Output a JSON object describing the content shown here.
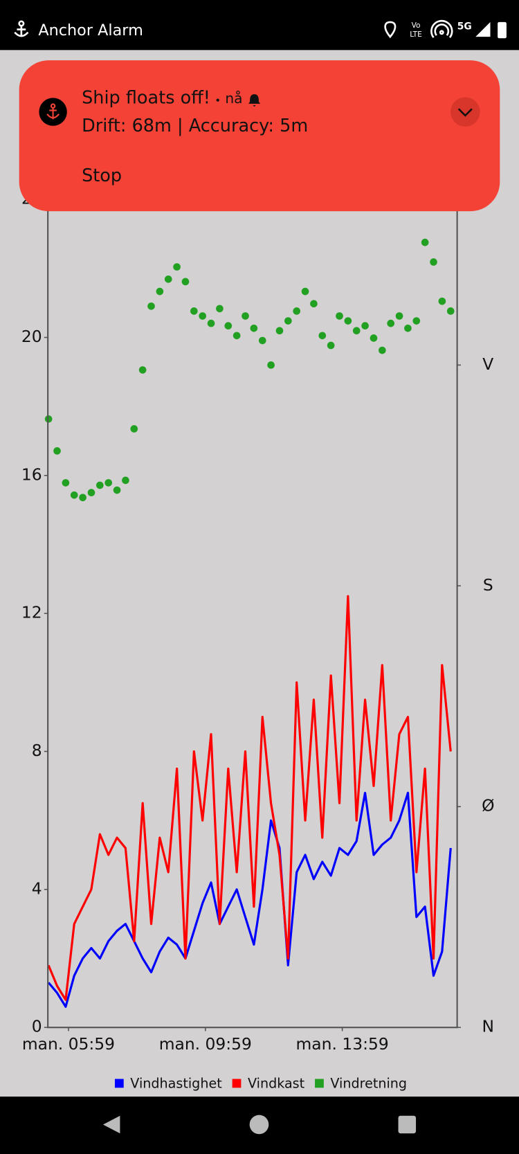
{
  "status": {
    "app": "Anchor Alarm",
    "volte": [
      "Vo",
      "LTE"
    ],
    "network": "5G"
  },
  "notification": {
    "title": "Ship floats off!",
    "time": "nå",
    "text": "Drift: 68m | Accuracy: 5m",
    "action": "Stop"
  },
  "chart_data": {
    "type": "line",
    "x": [
      5.4,
      5.65,
      5.9,
      6.15,
      6.4,
      6.65,
      6.9,
      7.15,
      7.4,
      7.65,
      7.9,
      8.15,
      8.4,
      8.65,
      8.9,
      9.15,
      9.4,
      9.65,
      9.9,
      10.15,
      10.4,
      10.65,
      10.9,
      11.15,
      11.4,
      11.65,
      11.9,
      12.15,
      12.4,
      12.65,
      12.9,
      13.15,
      13.4,
      13.65,
      13.9,
      14.15,
      14.4,
      14.65,
      14.9,
      15.15,
      15.4,
      15.65,
      15.9,
      16.15,
      16.4,
      16.65,
      16.9,
      17.15
    ],
    "xlim": [
      5.38,
      17.34
    ],
    "xticks": [
      {
        "value": 5.9833,
        "label": "man. 05:59"
      },
      {
        "value": 9.9833,
        "label": "man. 09:59"
      },
      {
        "value": 13.9833,
        "label": "man. 13:59"
      }
    ],
    "ylim": [
      0,
      24
    ],
    "yticks": [
      0,
      4,
      8,
      12,
      16,
      20,
      24
    ],
    "y2lim": [
      0,
      337.5
    ],
    "y2ticks": [
      {
        "value": 0,
        "label": "N"
      },
      {
        "value": 90,
        "label": "Ø"
      },
      {
        "value": 180,
        "label": "S"
      },
      {
        "value": 270,
        "label": "V"
      }
    ],
    "series": [
      {
        "name": "Vindhastighet",
        "color": "#0000ff",
        "values": [
          1.3,
          1.0,
          0.6,
          1.5,
          2.0,
          2.3,
          2.0,
          2.5,
          2.8,
          3.0,
          2.5,
          2.0,
          1.6,
          2.2,
          2.6,
          2.4,
          2.0,
          2.8,
          3.6,
          4.2,
          3.0,
          3.5,
          4.0,
          3.2,
          2.4,
          4.0,
          6.0,
          5.2,
          1.8,
          4.5,
          5.0,
          4.3,
          4.8,
          4.4,
          5.2,
          5.0,
          5.4,
          6.8,
          5.0,
          5.3,
          5.5,
          6.0,
          6.8,
          3.2,
          3.5,
          1.5,
          2.2,
          5.2
        ]
      },
      {
        "name": "Vindkast",
        "color": "#ff0000",
        "values": [
          1.8,
          1.2,
          0.8,
          3.0,
          3.5,
          4.0,
          5.6,
          5.0,
          5.5,
          5.2,
          2.5,
          6.5,
          3.0,
          5.5,
          4.5,
          7.5,
          2.0,
          8.0,
          6.0,
          8.5,
          3.0,
          7.5,
          4.5,
          8.0,
          3.5,
          9.0,
          6.5,
          5.0,
          2.0,
          10.0,
          6.0,
          9.5,
          5.5,
          10.2,
          6.5,
          12.5,
          6.0,
          9.5,
          7.0,
          10.5,
          6.0,
          8.5,
          9.0,
          4.5,
          7.5,
          2.0,
          10.5,
          8.0
        ]
      },
      {
        "name": "Vindretning",
        "color": "#22a022",
        "type": "scatter",
        "axis": "y2",
        "values": [
          248,
          235,
          222,
          217,
          216,
          218,
          221,
          222,
          219,
          223,
          244,
          268,
          294,
          300,
          305,
          310,
          304,
          292,
          290,
          287,
          293,
          286,
          282,
          290,
          285,
          280,
          270,
          284,
          288,
          292,
          300,
          295,
          282,
          278,
          290,
          288,
          284,
          286,
          281,
          276,
          287,
          290,
          285,
          288,
          320,
          312,
          296,
          292
        ]
      }
    ]
  }
}
